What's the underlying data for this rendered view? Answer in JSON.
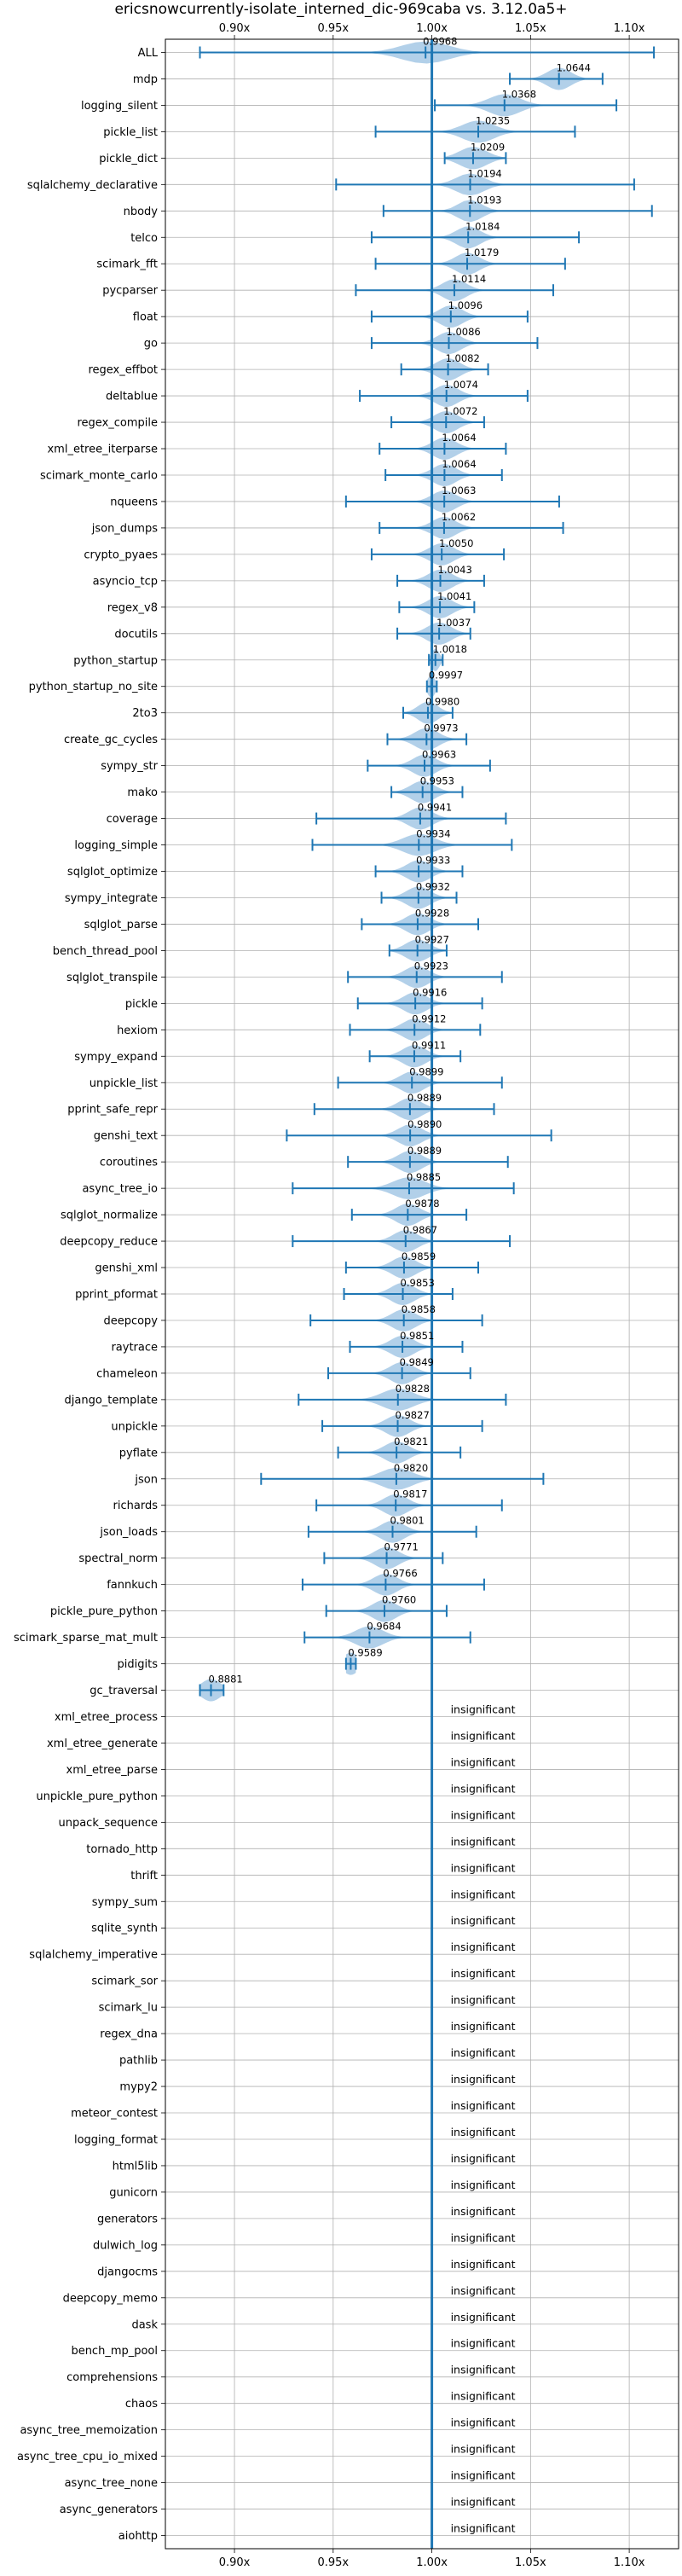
{
  "chart_data": {
    "type": "violin",
    "title": "ericsnowcurrently-isolate_interned_dic-969caba vs. 3.12.0a5+",
    "xlabel": "",
    "ylabel": "",
    "xlim": [
      0.865,
      1.125
    ],
    "x_ticks": [
      0.9,
      0.95,
      1.0,
      1.05,
      1.1
    ],
    "x_tick_labels": [
      "0.90x",
      "0.95x",
      "1.00x",
      "1.05x",
      "1.10x"
    ],
    "grid": true,
    "reference_line": 1.0,
    "insignificant_label": "insignificant",
    "accent_color": "#1f77b4",
    "violin_color": "#aecde8",
    "rows": [
      {
        "name": "ALL",
        "label": "0.9968",
        "value": 0.9968,
        "min": 0.8825,
        "max": 1.1125,
        "spread": 0.012
      },
      {
        "name": "mdp",
        "label": "1.0644",
        "value": 1.0644,
        "min": 1.0395,
        "max": 1.0865,
        "spread": 0.006
      },
      {
        "name": "logging_silent",
        "label": "1.0368",
        "value": 1.0368,
        "min": 1.0015,
        "max": 1.0935,
        "spread": 0.008
      },
      {
        "name": "pickle_list",
        "label": "1.0235",
        "value": 1.0235,
        "min": 0.9715,
        "max": 1.0725,
        "spread": 0.008
      },
      {
        "name": "pickle_dict",
        "label": "1.0209",
        "value": 1.0209,
        "min": 1.0065,
        "max": 1.0375,
        "spread": 0.007
      },
      {
        "name": "sqlalchemy_declarative",
        "label": "1.0194",
        "value": 1.0194,
        "min": 0.9515,
        "max": 1.1025,
        "spread": 0.007
      },
      {
        "name": "nbody",
        "label": "1.0193",
        "value": 1.0193,
        "min": 0.9755,
        "max": 1.1115,
        "spread": 0.006
      },
      {
        "name": "telco",
        "label": "1.0184",
        "value": 1.0184,
        "min": 0.9695,
        "max": 1.0745,
        "spread": 0.006
      },
      {
        "name": "scimark_fft",
        "label": "1.0179",
        "value": 1.0179,
        "min": 0.9715,
        "max": 1.0675,
        "spread": 0.006
      },
      {
        "name": "pycparser",
        "label": "1.0114",
        "value": 1.0114,
        "min": 0.9615,
        "max": 1.0615,
        "spread": 0.006
      },
      {
        "name": "float",
        "label": "1.0096",
        "value": 1.0096,
        "min": 0.9695,
        "max": 1.0485,
        "spread": 0.006
      },
      {
        "name": "go",
        "label": "1.0086",
        "value": 1.0086,
        "min": 0.9695,
        "max": 1.0535,
        "spread": 0.006
      },
      {
        "name": "regex_effbot",
        "label": "1.0082",
        "value": 1.0082,
        "min": 0.9845,
        "max": 1.0285,
        "spread": 0.006
      },
      {
        "name": "deltablue",
        "label": "1.0074",
        "value": 1.0074,
        "min": 0.9635,
        "max": 1.0485,
        "spread": 0.006
      },
      {
        "name": "regex_compile",
        "label": "1.0072",
        "value": 1.0072,
        "min": 0.9795,
        "max": 1.0265,
        "spread": 0.006
      },
      {
        "name": "xml_etree_iterparse",
        "label": "1.0064",
        "value": 1.0064,
        "min": 0.9735,
        "max": 1.0375,
        "spread": 0.006
      },
      {
        "name": "scimark_monte_carlo",
        "label": "1.0064",
        "value": 1.0064,
        "min": 0.9765,
        "max": 1.0355,
        "spread": 0.006
      },
      {
        "name": "nqueens",
        "label": "1.0063",
        "value": 1.0063,
        "min": 0.9565,
        "max": 1.0645,
        "spread": 0.006
      },
      {
        "name": "json_dumps",
        "label": "1.0062",
        "value": 1.0062,
        "min": 0.9735,
        "max": 1.0665,
        "spread": 0.006
      },
      {
        "name": "crypto_pyaes",
        "label": "1.0050",
        "value": 1.005,
        "min": 0.9695,
        "max": 1.0365,
        "spread": 0.006
      },
      {
        "name": "asyncio_tcp",
        "label": "1.0043",
        "value": 1.0043,
        "min": 0.9825,
        "max": 1.0265,
        "spread": 0.006
      },
      {
        "name": "regex_v8",
        "label": "1.0041",
        "value": 1.0041,
        "min": 0.9835,
        "max": 1.0215,
        "spread": 0.006
      },
      {
        "name": "docutils",
        "label": "1.0037",
        "value": 1.0037,
        "min": 0.9825,
        "max": 1.0195,
        "spread": 0.006
      },
      {
        "name": "python_startup",
        "label": "1.0018",
        "value": 1.0018,
        "min": 0.9985,
        "max": 1.0055,
        "spread": 0.002
      },
      {
        "name": "python_startup_no_site",
        "label": "0.9997",
        "value": 0.9997,
        "min": 0.9975,
        "max": 1.0025,
        "spread": 0.002
      },
      {
        "name": "2to3",
        "label": "0.9980",
        "value": 0.998,
        "min": 0.9855,
        "max": 1.0105,
        "spread": 0.005
      },
      {
        "name": "create_gc_cycles",
        "label": "0.9973",
        "value": 0.9973,
        "min": 0.9775,
        "max": 1.0175,
        "spread": 0.006
      },
      {
        "name": "sympy_str",
        "label": "0.9963",
        "value": 0.9963,
        "min": 0.9675,
        "max": 1.0295,
        "spread": 0.006
      },
      {
        "name": "mako",
        "label": "0.9953",
        "value": 0.9953,
        "min": 0.9795,
        "max": 1.0155,
        "spread": 0.006
      },
      {
        "name": "coverage",
        "label": "0.9941",
        "value": 0.9941,
        "min": 0.9415,
        "max": 1.0375,
        "spread": 0.006
      },
      {
        "name": "logging_simple",
        "label": "0.9934",
        "value": 0.9934,
        "min": 0.9395,
        "max": 1.0405,
        "spread": 0.008
      },
      {
        "name": "sqlglot_optimize",
        "label": "0.9933",
        "value": 0.9933,
        "min": 0.9715,
        "max": 1.0155,
        "spread": 0.006
      },
      {
        "name": "sympy_integrate",
        "label": "0.9932",
        "value": 0.9932,
        "min": 0.9745,
        "max": 1.0125,
        "spread": 0.006
      },
      {
        "name": "sqlglot_parse",
        "label": "0.9928",
        "value": 0.9928,
        "min": 0.9645,
        "max": 1.0235,
        "spread": 0.006
      },
      {
        "name": "bench_thread_pool",
        "label": "0.9927",
        "value": 0.9927,
        "min": 0.9785,
        "max": 1.0075,
        "spread": 0.006
      },
      {
        "name": "sqlglot_transpile",
        "label": "0.9923",
        "value": 0.9923,
        "min": 0.9575,
        "max": 1.0355,
        "spread": 0.006
      },
      {
        "name": "pickle",
        "label": "0.9916",
        "value": 0.9916,
        "min": 0.9625,
        "max": 1.0255,
        "spread": 0.006
      },
      {
        "name": "hexiom",
        "label": "0.9912",
        "value": 0.9912,
        "min": 0.9585,
        "max": 1.0245,
        "spread": 0.006
      },
      {
        "name": "sympy_expand",
        "label": "0.9911",
        "value": 0.9911,
        "min": 0.9685,
        "max": 1.0145,
        "spread": 0.006
      },
      {
        "name": "unpickle_list",
        "label": "0.9899",
        "value": 0.9899,
        "min": 0.9525,
        "max": 1.0355,
        "spread": 0.006
      },
      {
        "name": "pprint_safe_repr",
        "label": "0.9889",
        "value": 0.9889,
        "min": 0.9405,
        "max": 1.0315,
        "spread": 0.006
      },
      {
        "name": "genshi_text",
        "label": "0.9890",
        "value": 0.989,
        "min": 0.9265,
        "max": 1.0605,
        "spread": 0.006
      },
      {
        "name": "coroutines",
        "label": "0.9889",
        "value": 0.9889,
        "min": 0.9575,
        "max": 1.0385,
        "spread": 0.006
      },
      {
        "name": "async_tree_io",
        "label": "0.9885",
        "value": 0.9885,
        "min": 0.9295,
        "max": 1.0415,
        "spread": 0.008
      },
      {
        "name": "sqlglot_normalize",
        "label": "0.9878",
        "value": 0.9878,
        "min": 0.9595,
        "max": 1.0175,
        "spread": 0.006
      },
      {
        "name": "deepcopy_reduce",
        "label": "0.9867",
        "value": 0.9867,
        "min": 0.9295,
        "max": 1.0395,
        "spread": 0.006
      },
      {
        "name": "genshi_xml",
        "label": "0.9859",
        "value": 0.9859,
        "min": 0.9565,
        "max": 1.0235,
        "spread": 0.006
      },
      {
        "name": "pprint_pformat",
        "label": "0.9853",
        "value": 0.9853,
        "min": 0.9555,
        "max": 1.0105,
        "spread": 0.006
      },
      {
        "name": "deepcopy",
        "label": "0.9858",
        "value": 0.9858,
        "min": 0.9385,
        "max": 1.0255,
        "spread": 0.006
      },
      {
        "name": "raytrace",
        "label": "0.9851",
        "value": 0.9851,
        "min": 0.9585,
        "max": 1.0155,
        "spread": 0.006
      },
      {
        "name": "chameleon",
        "label": "0.9849",
        "value": 0.9849,
        "min": 0.9475,
        "max": 1.0195,
        "spread": 0.006
      },
      {
        "name": "django_template",
        "label": "0.9828",
        "value": 0.9828,
        "min": 0.9325,
        "max": 1.0375,
        "spread": 0.008
      },
      {
        "name": "unpickle",
        "label": "0.9827",
        "value": 0.9827,
        "min": 0.9445,
        "max": 1.0255,
        "spread": 0.006
      },
      {
        "name": "pyflate",
        "label": "0.9821",
        "value": 0.9821,
        "min": 0.9525,
        "max": 1.0145,
        "spread": 0.006
      },
      {
        "name": "json",
        "label": "0.9820",
        "value": 0.982,
        "min": 0.9135,
        "max": 1.0565,
        "spread": 0.008
      },
      {
        "name": "richards",
        "label": "0.9817",
        "value": 0.9817,
        "min": 0.9415,
        "max": 1.0355,
        "spread": 0.006
      },
      {
        "name": "json_loads",
        "label": "0.9801",
        "value": 0.9801,
        "min": 0.9375,
        "max": 1.0225,
        "spread": 0.006
      },
      {
        "name": "spectral_norm",
        "label": "0.9771",
        "value": 0.9771,
        "min": 0.9455,
        "max": 1.0055,
        "spread": 0.006
      },
      {
        "name": "fannkuch",
        "label": "0.9766",
        "value": 0.9766,
        "min": 0.9345,
        "max": 1.0265,
        "spread": 0.006
      },
      {
        "name": "pickle_pure_python",
        "label": "0.9760",
        "value": 0.976,
        "min": 0.9465,
        "max": 1.0075,
        "spread": 0.006
      },
      {
        "name": "scimark_sparse_mat_mult",
        "label": "0.9684",
        "value": 0.9684,
        "min": 0.9355,
        "max": 1.0195,
        "spread": 0.007
      },
      {
        "name": "pidigits",
        "label": "0.9589",
        "value": 0.9589,
        "min": 0.9565,
        "max": 0.9615,
        "spread": 0.004
      },
      {
        "name": "gc_traversal",
        "label": "0.8881",
        "value": 0.8881,
        "min": 0.8825,
        "max": 0.8945,
        "spread": 0.005
      },
      {
        "name": "xml_etree_process",
        "insignificant": true
      },
      {
        "name": "xml_etree_generate",
        "insignificant": true
      },
      {
        "name": "xml_etree_parse",
        "insignificant": true
      },
      {
        "name": "unpickle_pure_python",
        "insignificant": true
      },
      {
        "name": "unpack_sequence",
        "insignificant": true
      },
      {
        "name": "tornado_http",
        "insignificant": true
      },
      {
        "name": "thrift",
        "insignificant": true
      },
      {
        "name": "sympy_sum",
        "insignificant": true
      },
      {
        "name": "sqlite_synth",
        "insignificant": true
      },
      {
        "name": "sqlalchemy_imperative",
        "insignificant": true
      },
      {
        "name": "scimark_sor",
        "insignificant": true
      },
      {
        "name": "scimark_lu",
        "insignificant": true
      },
      {
        "name": "regex_dna",
        "insignificant": true
      },
      {
        "name": "pathlib",
        "insignificant": true
      },
      {
        "name": "mypy2",
        "insignificant": true
      },
      {
        "name": "meteor_contest",
        "insignificant": true
      },
      {
        "name": "logging_format",
        "insignificant": true
      },
      {
        "name": "html5lib",
        "insignificant": true
      },
      {
        "name": "gunicorn",
        "insignificant": true
      },
      {
        "name": "generators",
        "insignificant": true
      },
      {
        "name": "dulwich_log",
        "insignificant": true
      },
      {
        "name": "djangocms",
        "insignificant": true
      },
      {
        "name": "deepcopy_memo",
        "insignificant": true
      },
      {
        "name": "dask",
        "insignificant": true
      },
      {
        "name": "bench_mp_pool",
        "insignificant": true
      },
      {
        "name": "comprehensions",
        "insignificant": true
      },
      {
        "name": "chaos",
        "insignificant": true
      },
      {
        "name": "async_tree_memoization",
        "insignificant": true
      },
      {
        "name": "async_tree_cpu_io_mixed",
        "insignificant": true
      },
      {
        "name": "async_tree_none",
        "insignificant": true
      },
      {
        "name": "async_generators",
        "insignificant": true
      },
      {
        "name": "aiohttp",
        "insignificant": true
      }
    ]
  }
}
